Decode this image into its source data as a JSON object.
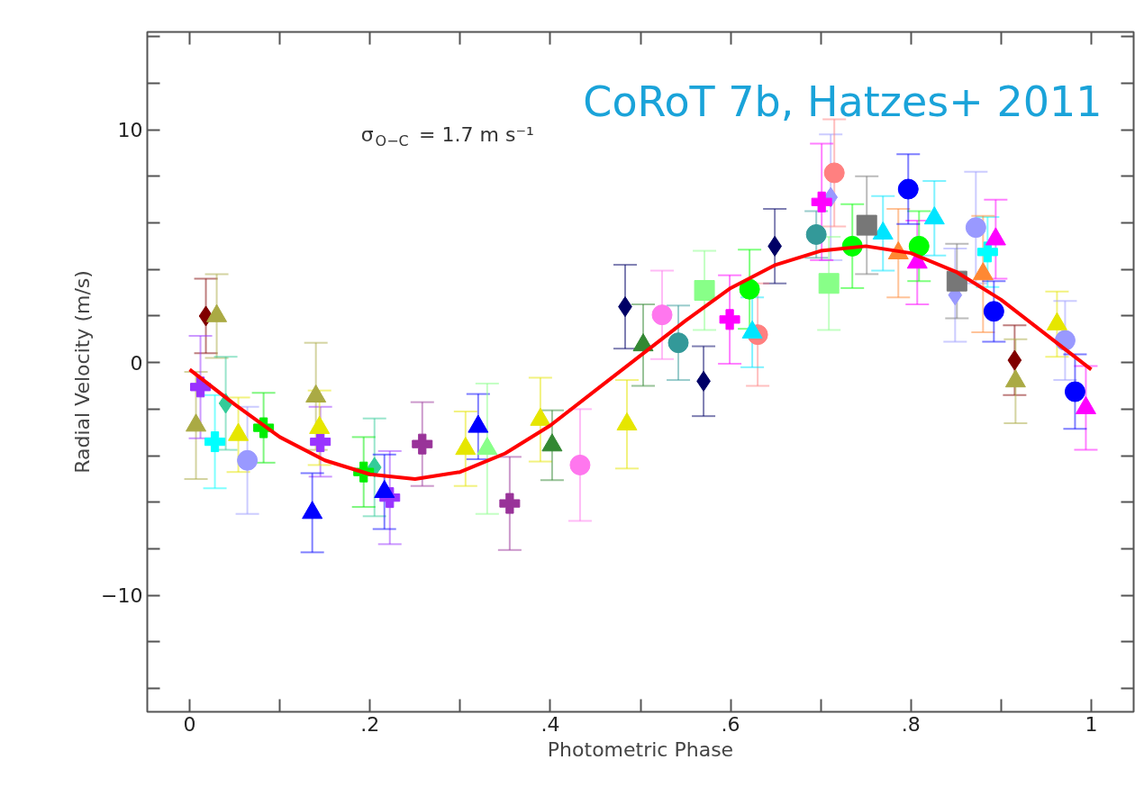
{
  "chart_data": {
    "type": "scatter",
    "xlabel": "Photometric Phase",
    "ylabel": "Radial Velocity (m/s)",
    "xlim": [
      -0.047,
      1.047
    ],
    "ylim": [
      -15,
      14.2
    ],
    "xticks": [
      0,
      {
        "value": 0.1,
        "label": null
      },
      {
        "value": 0.2,
        "label": ".2"
      },
      {
        "value": 0.3,
        "label": null
      },
      {
        "value": 0.4,
        "label": ".4"
      },
      {
        "value": 0.5,
        "label": null
      },
      {
        "value": 0.6,
        "label": ".6"
      },
      {
        "value": 0.7,
        "label": null
      },
      {
        "value": 0.8,
        "label": ".8"
      },
      {
        "value": 0.9,
        "label": null
      },
      1
    ],
    "yticks": [
      {
        "value": -14,
        "label": null
      },
      {
        "value": -12,
        "label": null
      },
      {
        "value": -10,
        "label": "−10"
      },
      {
        "value": -8,
        "label": null
      },
      {
        "value": -6,
        "label": null
      },
      {
        "value": -4,
        "label": null
      },
      {
        "value": -2,
        "label": null
      },
      0,
      {
        "value": 2,
        "label": null
      },
      {
        "value": 4,
        "label": null
      },
      {
        "value": 6,
        "label": null
      },
      {
        "value": 8,
        "label": null
      },
      10,
      {
        "value": 12,
        "label": null
      },
      {
        "value": 14,
        "label": null
      }
    ],
    "grid": false,
    "annotations": [
      "CoRoT 7b, Hatzes+ 2011",
      "σ$_{O−C}$ = 1.7 m s⁻¹"
    ],
    "series": [
      {
        "color": "#800000",
        "marker": "diamond",
        "x": [
          0.018,
          0.915
        ],
        "values": [
          2.0,
          0.1
        ],
        "errors": [
          1.6,
          1.5
        ]
      },
      {
        "color": "#aaaa44",
        "marker": "triangle",
        "x": [
          0.03,
          0.007,
          0.14,
          0.916
        ],
        "values": [
          2.0,
          -2.7,
          -1.45,
          -0.8
        ],
        "errors": [
          1.8,
          2.3,
          2.3,
          1.8
        ]
      },
      {
        "color": "#9933ff",
        "marker": "cross",
        "x": [
          0.012,
          0.145,
          0.222
        ],
        "values": [
          -1.05,
          -3.4,
          -5.8
        ],
        "errors": [
          2.2,
          1.5,
          2.0
        ]
      },
      {
        "color": "#33cc99",
        "marker": "diamond",
        "x": [
          0.04,
          0.205
        ],
        "values": [
          -1.75,
          -4.5
        ],
        "errors": [
          2.0,
          2.1
        ]
      },
      {
        "color": "#00ffff",
        "marker": "cross",
        "x": [
          0.028,
          0.885
        ],
        "values": [
          -3.4,
          4.75
        ],
        "errors": [
          2.0,
          1.5
        ]
      },
      {
        "color": "#e6e600",
        "marker": "triangle",
        "x": [
          0.054,
          0.144,
          0.306,
          0.389,
          0.485,
          0.962
        ],
        "values": [
          -3.1,
          -2.8,
          -3.7,
          -2.45,
          -2.65,
          1.65
        ],
        "errors": [
          1.6,
          1.6,
          1.6,
          1.8,
          1.9,
          1.4
        ]
      },
      {
        "color": "#9999ff",
        "marker": "circle",
        "x": [
          0.064,
          0.872,
          0.971
        ],
        "values": [
          -4.2,
          5.8,
          0.95
        ],
        "errors": [
          2.3,
          2.4,
          1.7
        ]
      },
      {
        "color": "#9999ff",
        "marker": "diamond",
        "x": [
          0.711,
          0.849
        ],
        "values": [
          7.1,
          2.9
        ],
        "errors": [
          2.7,
          2.0
        ]
      },
      {
        "color": "#00ee00",
        "marker": "cross",
        "x": [
          0.082,
          0.193
        ],
        "values": [
          -2.8,
          -4.7
        ],
        "errors": [
          1.5,
          1.5
        ]
      },
      {
        "color": "#0000ff",
        "marker": "triangle",
        "x": [
          0.136,
          0.216,
          0.32
        ],
        "values": [
          -6.45,
          -5.55,
          -2.75
        ],
        "errors": [
          1.7,
          1.6,
          1.4
        ]
      },
      {
        "color": "#993399",
        "marker": "cross",
        "x": [
          0.258,
          0.355
        ],
        "values": [
          -3.5,
          -6.05
        ],
        "errors": [
          1.8,
          2.0
        ]
      },
      {
        "color": "#88ff88",
        "marker": "triangle",
        "x": [
          0.33
        ],
        "values": [
          -3.7
        ],
        "errors": [
          2.8
        ]
      },
      {
        "color": "#88ff88",
        "marker": "square",
        "x": [
          0.571,
          0.709
        ],
        "values": [
          3.1,
          3.4
        ],
        "errors": [
          1.7,
          2.0
        ]
      },
      {
        "color": "#338833",
        "marker": "triangle",
        "x": [
          0.402,
          0.503
        ],
        "values": [
          -3.55,
          0.75
        ],
        "errors": [
          1.5,
          1.75
        ]
      },
      {
        "color": "#ff77ee",
        "marker": "circle",
        "x": [
          0.433,
          0.524
        ],
        "values": [
          -4.4,
          2.05
        ],
        "errors": [
          2.4,
          1.9
        ]
      },
      {
        "color": "#000066",
        "marker": "diamond",
        "x": [
          0.483,
          0.57,
          0.649
        ],
        "values": [
          2.4,
          -0.8,
          5.0
        ],
        "errors": [
          1.8,
          1.5,
          1.6
        ]
      },
      {
        "color": "#339999",
        "marker": "circle",
        "x": [
          0.542,
          0.695
        ],
        "values": [
          0.85,
          5.5
        ],
        "errors": [
          1.6,
          1.0
        ]
      },
      {
        "color": "#ff00ff",
        "marker": "cross",
        "x": [
          0.599,
          0.701
        ],
        "values": [
          1.85,
          6.9
        ],
        "errors": [
          1.9,
          2.5
        ]
      },
      {
        "color": "#ff00ff",
        "marker": "triangle",
        "x": [
          0.807,
          0.894,
          0.994
        ],
        "values": [
          4.3,
          5.3,
          -1.95
        ],
        "errors": [
          1.8,
          1.7,
          1.8
        ]
      },
      {
        "color": "#00ff00",
        "marker": "circle",
        "x": [
          0.621,
          0.735,
          0.809
        ],
        "values": [
          3.15,
          5.0,
          5.0
        ],
        "errors": [
          1.7,
          1.8,
          1.5
        ]
      },
      {
        "color": "#ff8080",
        "marker": "circle",
        "x": [
          0.63,
          0.715
        ],
        "values": [
          1.2,
          8.15
        ],
        "errors": [
          2.2,
          2.3
        ]
      },
      {
        "color": "#00e5ff",
        "marker": "triangle",
        "x": [
          0.624,
          0.769,
          0.826
        ],
        "values": [
          1.3,
          5.55,
          6.2
        ],
        "errors": [
          1.5,
          1.6,
          1.6
        ]
      },
      {
        "color": "#777777",
        "marker": "square",
        "x": [
          0.751,
          0.851
        ],
        "values": [
          5.9,
          3.5
        ],
        "errors": [
          2.1,
          1.6
        ]
      },
      {
        "color": "#ff8833",
        "marker": "triangle",
        "x": [
          0.786,
          0.88
        ],
        "values": [
          4.7,
          3.8
        ],
        "errors": [
          1.9,
          2.5
        ]
      },
      {
        "color": "#0000ff",
        "marker": "circle",
        "x": [
          0.797,
          0.892,
          0.982
        ],
        "values": [
          7.45,
          2.2,
          -1.25
        ],
        "errors": [
          1.5,
          1.3,
          1.6
        ]
      },
      {
        "type": "line",
        "color": "#ff0000",
        "line_style": "solid",
        "x": [
          0,
          0.05,
          0.1,
          0.15,
          0.2,
          0.25,
          0.3,
          0.35,
          0.4,
          0.45,
          0.5,
          0.55,
          0.6,
          0.65,
          0.7,
          0.75,
          0.8,
          0.85,
          0.9,
          0.95,
          1.0
        ],
        "values": [
          -0.3,
          -1.8,
          -3.2,
          -4.2,
          -4.8,
          -5.0,
          -4.7,
          -3.9,
          -2.7,
          -1.2,
          0.3,
          1.8,
          3.2,
          4.2,
          4.8,
          5.0,
          4.7,
          3.9,
          2.7,
          1.2,
          -0.3
        ]
      }
    ]
  }
}
